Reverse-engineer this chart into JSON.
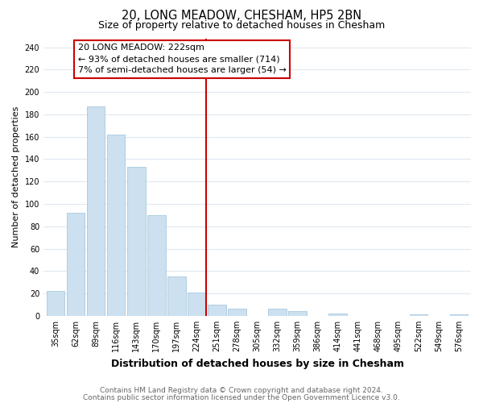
{
  "title": "20, LONG MEADOW, CHESHAM, HP5 2BN",
  "subtitle": "Size of property relative to detached houses in Chesham",
  "xlabel": "Distribution of detached houses by size in Chesham",
  "ylabel": "Number of detached properties",
  "bin_labels": [
    "35sqm",
    "62sqm",
    "89sqm",
    "116sqm",
    "143sqm",
    "170sqm",
    "197sqm",
    "224sqm",
    "251sqm",
    "278sqm",
    "305sqm",
    "332sqm",
    "359sqm",
    "386sqm",
    "414sqm",
    "441sqm",
    "468sqm",
    "495sqm",
    "522sqm",
    "549sqm",
    "576sqm"
  ],
  "bar_heights": [
    22,
    92,
    187,
    162,
    133,
    90,
    35,
    21,
    10,
    6,
    0,
    6,
    4,
    0,
    2,
    0,
    0,
    0,
    1,
    0,
    1
  ],
  "bar_color": "#cce0ef",
  "bar_edge_color": "#a8c8e0",
  "vline_color": "#cc0000",
  "vline_bar_index": 7,
  "annotation_text_line1": "20 LONG MEADOW: 222sqm",
  "annotation_text_line2": "← 93% of detached houses are smaller (714)",
  "annotation_text_line3": "7% of semi-detached houses are larger (54) →",
  "annotation_box_color": "#ffffff",
  "annotation_box_edge": "#cc0000",
  "ylim": [
    0,
    248
  ],
  "yticks": [
    0,
    20,
    40,
    60,
    80,
    100,
    120,
    140,
    160,
    180,
    200,
    220,
    240
  ],
  "footer_line1": "Contains HM Land Registry data © Crown copyright and database right 2024.",
  "footer_line2": "Contains public sector information licensed under the Open Government Licence v3.0.",
  "bg_color": "#ffffff",
  "plot_bg_color": "#ffffff",
  "grid_color": "#e0e8f0",
  "title_fontsize": 10.5,
  "subtitle_fontsize": 9,
  "xlabel_fontsize": 9,
  "ylabel_fontsize": 8,
  "tick_fontsize": 7,
  "annotation_fontsize": 8,
  "footer_fontsize": 6.5,
  "footer_color": "#666666"
}
